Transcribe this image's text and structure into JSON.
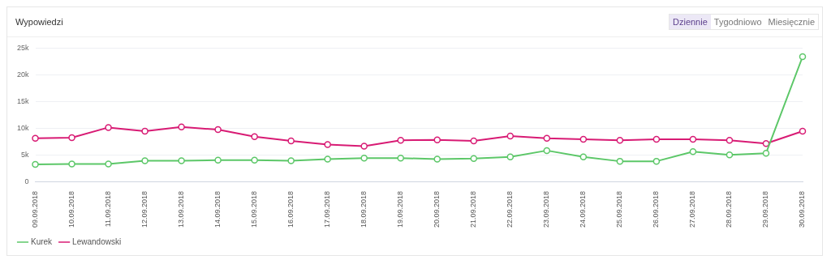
{
  "chart_data": {
    "type": "line",
    "title": "Wypowiedzi",
    "annotations": [
      "Dziennie",
      "Tygodniowo",
      "Miesięcznie"
    ],
    "categories": [
      "09.09.2018",
      "10.09.2018",
      "11.09.2018",
      "12.09.2018",
      "13.09.2018",
      "14.09.2018",
      "15.09.2018",
      "16.09.2018",
      "17.09.2018",
      "18.09.2018",
      "19.09.2018",
      "20.09.2018",
      "21.09.2018",
      "22.09.2018",
      "23.09.2018",
      "24.09.2018",
      "25.09.2018",
      "26.09.2018",
      "27.09.2018",
      "28.09.2018",
      "29.09.2018",
      "30.09.2018"
    ],
    "series": [
      {
        "name": "Kurek",
        "color": "#5cc768",
        "values": [
          3300,
          3400,
          3400,
          4000,
          4000,
          4100,
          4100,
          4000,
          4300,
          4500,
          4500,
          4300,
          4400,
          4700,
          5900,
          4700,
          3900,
          3900,
          5700,
          5100,
          5400,
          23400
        ]
      },
      {
        "name": "Lewandowski",
        "color": "#d81b74",
        "values": [
          8200,
          8300,
          10200,
          9500,
          10300,
          9800,
          8500,
          7700,
          7000,
          6700,
          7800,
          7900,
          7700,
          8600,
          8200,
          8000,
          7800,
          8000,
          8000,
          7800,
          7200,
          9500
        ]
      }
    ],
    "ylim": [
      0,
      25000
    ],
    "yticks": [
      0,
      {
        "value": 5000,
        "label": "5k"
      },
      {
        "value": 10000,
        "label": "10k"
      },
      {
        "value": 15000,
        "label": "15k"
      },
      {
        "value": 20000,
        "label": "20k"
      },
      {
        "value": 25000,
        "label": "25k"
      }
    ],
    "grid": "y",
    "legend": "bottom left",
    "marker": "circle",
    "line_style": "solid"
  }
}
